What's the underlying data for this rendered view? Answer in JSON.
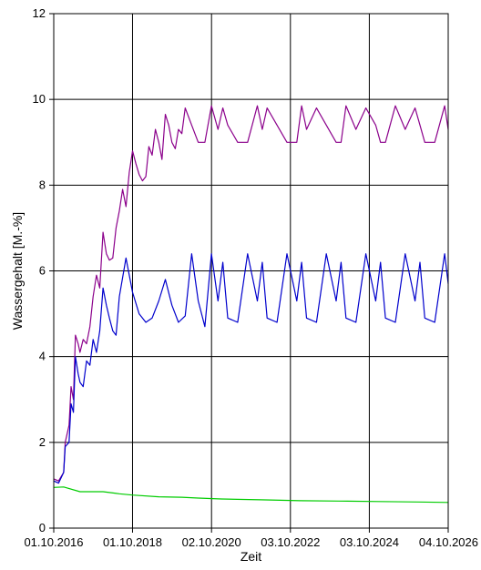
{
  "chart_data": {
    "type": "line",
    "title": "",
    "xlabel": "Zeit",
    "ylabel": "Wassergehalt [M.-%]",
    "ylim": [
      0,
      12
    ],
    "xlim": [
      "2016-10-01",
      "2026-10-04"
    ],
    "x_ticks": [
      "01.10.2016",
      "01.10.2018",
      "02.10.2020",
      "03.10.2022",
      "03.10.2024",
      "04.10.2026"
    ],
    "x_tick_dates": [
      "2016-10-01",
      "2018-10-01",
      "2020-10-02",
      "2022-10-03",
      "2024-10-03",
      "2026-10-04"
    ],
    "y_ticks": [
      "0",
      "2",
      "4",
      "6",
      "8",
      "10",
      "12"
    ],
    "grid": true,
    "series": [
      {
        "color": "#8b008b",
        "x": [
          "2016-10-01",
          "2016-11-15",
          "2017-01-01",
          "2017-01-15",
          "2017-02-20",
          "2017-03-10",
          "2017-04-01",
          "2017-04-20",
          "2017-05-15",
          "2017-06-01",
          "2017-07-01",
          "2017-08-01",
          "2017-09-01",
          "2017-10-01",
          "2017-11-01",
          "2017-12-01",
          "2018-01-01",
          "2018-02-01",
          "2018-03-01",
          "2018-04-01",
          "2018-05-01",
          "2018-06-01",
          "2018-07-01",
          "2018-08-01",
          "2018-09-01",
          "2018-10-01",
          "2018-11-01",
          "2018-12-01",
          "2019-01-01",
          "2019-02-01",
          "2019-03-01",
          "2019-04-01",
          "2019-05-01",
          "2019-06-01",
          "2019-07-01",
          "2019-08-01",
          "2019-09-01",
          "2019-10-01",
          "2019-11-01",
          "2019-12-01",
          "2020-01-01",
          "2020-02-01",
          "2020-04-01",
          "2020-06-01",
          "2020-08-01",
          "2020-10-01",
          "2020-12-01",
          "2021-01-15",
          "2021-03-01",
          "2021-06-01",
          "2021-09-01",
          "2021-12-01",
          "2022-01-15",
          "2022-03-01",
          "2022-06-01",
          "2022-09-01",
          "2022-12-01",
          "2023-01-15",
          "2023-03-01",
          "2023-06-01",
          "2023-09-01",
          "2023-12-01",
          "2024-01-15",
          "2024-03-01",
          "2024-06-01",
          "2024-09-01",
          "2024-12-01",
          "2025-01-15",
          "2025-03-01",
          "2025-06-01",
          "2025-09-01",
          "2025-12-01",
          "2026-01-15",
          "2026-03-01",
          "2026-06-01",
          "2026-09-01",
          "2026-10-04"
        ],
        "y": [
          1.15,
          1.1,
          1.3,
          2.0,
          2.4,
          3.3,
          3.0,
          4.5,
          4.3,
          4.1,
          4.4,
          4.3,
          4.7,
          5.4,
          5.9,
          5.6,
          6.9,
          6.4,
          6.25,
          6.3,
          7.0,
          7.4,
          7.9,
          7.5,
          8.3,
          8.8,
          8.5,
          8.25,
          8.1,
          8.2,
          8.9,
          8.7,
          9.3,
          9.0,
          8.6,
          9.65,
          9.4,
          9.0,
          8.85,
          9.3,
          9.2,
          9.8,
          9.4,
          9.0,
          9.0,
          9.85,
          9.3,
          9.8,
          9.4,
          9.0,
          9.0,
          9.85,
          9.3,
          9.8,
          9.4,
          9.0,
          9.0,
          9.85,
          9.3,
          9.8,
          9.4,
          9.0,
          9.0,
          9.85,
          9.3,
          9.8,
          9.4,
          9.0,
          9.0,
          9.85,
          9.3,
          9.8,
          9.4,
          9.0,
          9.0,
          9.85,
          9.3
        ]
      },
      {
        "color": "#0000cc",
        "x": [
          "2016-10-01",
          "2016-11-15",
          "2017-01-01",
          "2017-01-15",
          "2017-02-20",
          "2017-03-10",
          "2017-04-01",
          "2017-04-20",
          "2017-05-15",
          "2017-06-01",
          "2017-07-01",
          "2017-08-01",
          "2017-09-01",
          "2017-10-01",
          "2017-11-01",
          "2017-12-01",
          "2018-01-01",
          "2018-02-01",
          "2018-03-01",
          "2018-04-01",
          "2018-05-01",
          "2018-06-01",
          "2018-08-01",
          "2018-10-01",
          "2018-12-01",
          "2019-02-01",
          "2019-04-01",
          "2019-06-01",
          "2019-08-01",
          "2019-10-01",
          "2019-12-01",
          "2020-02-01",
          "2020-04-01",
          "2020-06-01",
          "2020-08-01",
          "2020-10-01",
          "2020-12-01",
          "2021-01-15",
          "2021-03-01",
          "2021-06-01",
          "2021-09-01",
          "2021-12-01",
          "2022-01-15",
          "2022-03-01",
          "2022-06-01",
          "2022-09-01",
          "2022-12-01",
          "2023-01-15",
          "2023-03-01",
          "2023-06-01",
          "2023-09-01",
          "2023-12-01",
          "2024-01-15",
          "2024-03-01",
          "2024-06-01",
          "2024-09-01",
          "2024-12-01",
          "2025-01-15",
          "2025-03-01",
          "2025-06-01",
          "2025-09-01",
          "2025-12-01",
          "2026-01-15",
          "2026-03-01",
          "2026-06-01",
          "2026-09-01",
          "2026-10-04"
        ],
        "y": [
          1.1,
          1.05,
          1.3,
          1.9,
          2.0,
          2.9,
          2.7,
          4.0,
          3.6,
          3.4,
          3.3,
          3.9,
          3.8,
          4.4,
          4.1,
          4.6,
          5.6,
          5.2,
          4.9,
          4.6,
          4.5,
          5.4,
          6.3,
          5.5,
          5.0,
          4.8,
          4.9,
          5.3,
          5.8,
          5.2,
          4.8,
          4.95,
          6.4,
          5.3,
          4.7,
          6.4,
          5.3,
          6.2,
          4.9,
          4.8,
          6.4,
          5.3,
          6.2,
          4.9,
          4.8,
          6.4,
          5.3,
          6.2,
          4.9,
          4.8,
          6.4,
          5.3,
          6.2,
          4.9,
          4.8,
          6.4,
          5.3,
          6.2,
          4.9,
          4.8,
          6.4,
          5.3,
          6.2,
          4.9,
          4.8,
          6.4,
          5.7
        ]
      },
      {
        "color": "#00cc00",
        "x": [
          "2016-10-01",
          "2017-01-01",
          "2017-06-01",
          "2018-01-01",
          "2018-06-01",
          "2018-10-01",
          "2019-06-01",
          "2020-01-01",
          "2020-06-01",
          "2021-01-01",
          "2022-01-01",
          "2023-01-01",
          "2024-01-01",
          "2025-01-01",
          "2026-01-01",
          "2026-10-04"
        ],
        "y": [
          0.95,
          0.96,
          0.85,
          0.85,
          0.8,
          0.77,
          0.73,
          0.72,
          0.7,
          0.68,
          0.66,
          0.64,
          0.63,
          0.62,
          0.61,
          0.6
        ]
      }
    ]
  }
}
